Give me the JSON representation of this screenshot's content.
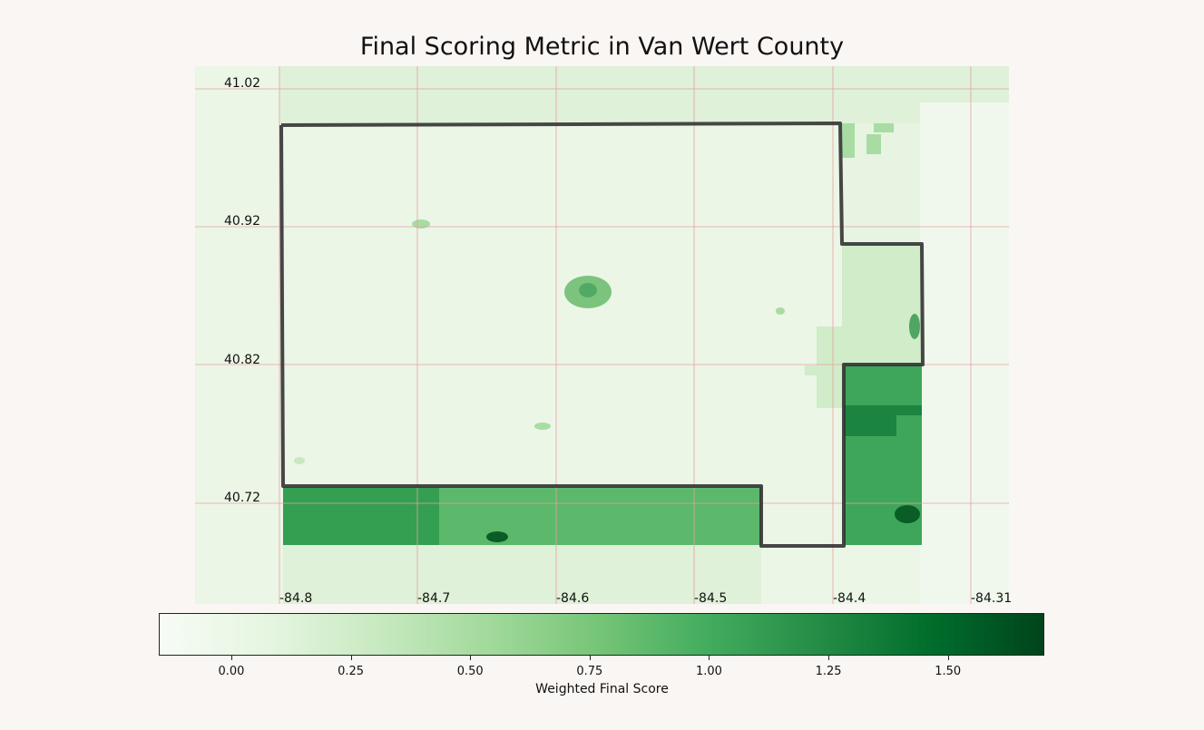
{
  "map": {
    "title": "Final Scoring Metric in Van Wert County",
    "latitude_labels": [
      "41.02",
      "40.92",
      "40.82",
      "40.72"
    ],
    "longitude_labels": [
      "-84.8",
      "-84.7",
      "-84.6",
      "-84.5",
      "-84.4",
      "-84.31"
    ],
    "gridline_color": "#e8a0a0",
    "county_boundary_color": "#333333"
  },
  "colorbar": {
    "label": "Weighted Final Score",
    "colormap": "Greens",
    "tick_labels": [
      "0.00",
      "0.25",
      "0.50",
      "0.75",
      "1.00",
      "1.25",
      "1.50"
    ],
    "range": [
      -0.15,
      1.7
    ],
    "colors": [
      "#f7fcf5",
      "#e5f5e0",
      "#c7e9c0",
      "#a1d99b",
      "#74c476",
      "#41ab5d",
      "#238b45",
      "#006d2c",
      "#00441b"
    ]
  }
}
